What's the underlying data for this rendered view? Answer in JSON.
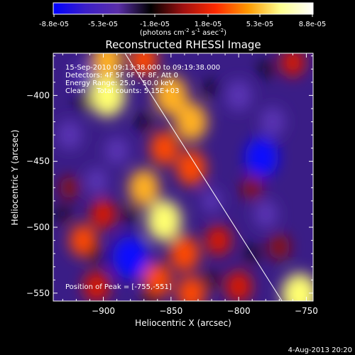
{
  "colorbar": {
    "ticks": [
      "-8.8e-05",
      "-5.3e-05",
      "-1.8e-05",
      "1.8e-05",
      "5.3e-05",
      "8.8e-05"
    ],
    "unit_label": "(photons cm",
    "unit_sup1": "-2",
    "unit_mid": " s",
    "unit_sup2": "-1",
    "unit_mid2": " asec",
    "unit_sup3": "-2",
    "unit_end": ")",
    "colors": [
      "#0000ff",
      "#3c1fc8",
      "#5a2ea8",
      "#000000",
      "#a01010",
      "#ff2a00",
      "#ff9a00",
      "#ffff90",
      "#ffffff"
    ]
  },
  "chart_data": {
    "type": "heatmap",
    "title": "Reconstructed RHESSI Image",
    "xlabel": "Heliocentric X (arcsec)",
    "ylabel": "Heliocentric Y (arcsec)",
    "xlim": [
      -937,
      -745
    ],
    "ylim": [
      -556,
      -368
    ],
    "x_ticks": [
      -900,
      -850,
      -800,
      -750
    ],
    "x_tick_labels": [
      "−900",
      "−850",
      "−800",
      "−750"
    ],
    "y_ticks": [
      -400,
      -450,
      -500,
      -550
    ],
    "y_tick_labels": [
      "−400",
      "−450",
      "−500",
      "−550"
    ],
    "annotations": [
      "15-Sep-2010 09:13:38.000 to 09:19:38.000",
      "Detectors: 4F 5F 6F 7F 8F, Att 0",
      "Energy Range: 25.0 - 50.0 keV",
      "Clean     Total counts: 5.15E+03"
    ],
    "peak_label": "Position of Peak = [-755,-551]",
    "peak": [
      -755,
      -551
    ],
    "limb_line": [
      [
        -884,
        -368
      ],
      [
        -768,
        -556
      ]
    ],
    "blobs": [
      {
        "x": -897,
        "y": -400,
        "v": 1.0
      },
      {
        "x": -897,
        "y": -373,
        "v": 0.8
      },
      {
        "x": -870,
        "y": -373,
        "v": 0.65
      },
      {
        "x": -850,
        "y": -400,
        "v": 0.9
      },
      {
        "x": -835,
        "y": -420,
        "v": 0.85
      },
      {
        "x": -855,
        "y": -440,
        "v": 0.7
      },
      {
        "x": -835,
        "y": -455,
        "v": 0.75
      },
      {
        "x": -870,
        "y": -470,
        "v": 0.8
      },
      {
        "x": -855,
        "y": -495,
        "v": 0.95
      },
      {
        "x": -900,
        "y": -490,
        "v": 0.55
      },
      {
        "x": -915,
        "y": -510,
        "v": 0.65
      },
      {
        "x": -840,
        "y": -520,
        "v": 0.75
      },
      {
        "x": -815,
        "y": -510,
        "v": 0.55
      },
      {
        "x": -800,
        "y": -545,
        "v": 0.6
      },
      {
        "x": -860,
        "y": -540,
        "v": 0.7
      },
      {
        "x": -835,
        "y": -550,
        "v": 0.7
      },
      {
        "x": -905,
        "y": -545,
        "v": 0.6
      },
      {
        "x": -755,
        "y": -551,
        "v": 1.0
      },
      {
        "x": -760,
        "y": -375,
        "v": 0.5
      },
      {
        "x": -790,
        "y": -470,
        "v": 0.35
      },
      {
        "x": -770,
        "y": -515,
        "v": 0.4
      },
      {
        "x": -925,
        "y": -470,
        "v": 0.3
      },
      {
        "x": -880,
        "y": -523,
        "v": -1.0
      },
      {
        "x": -783,
        "y": -447,
        "v": -0.9
      },
      {
        "x": -890,
        "y": -442,
        "v": -0.5
      },
      {
        "x": -800,
        "y": -400,
        "v": -0.6
      },
      {
        "x": -925,
        "y": -430,
        "v": -0.55
      },
      {
        "x": -775,
        "y": -420,
        "v": -0.55
      },
      {
        "x": -780,
        "y": -490,
        "v": -0.5
      },
      {
        "x": -915,
        "y": -385,
        "v": -0.4
      },
      {
        "x": -905,
        "y": -465,
        "v": -0.45
      },
      {
        "x": -820,
        "y": -480,
        "v": -0.35
      }
    ]
  },
  "timestamp": "4-Aug-2013 20:20"
}
